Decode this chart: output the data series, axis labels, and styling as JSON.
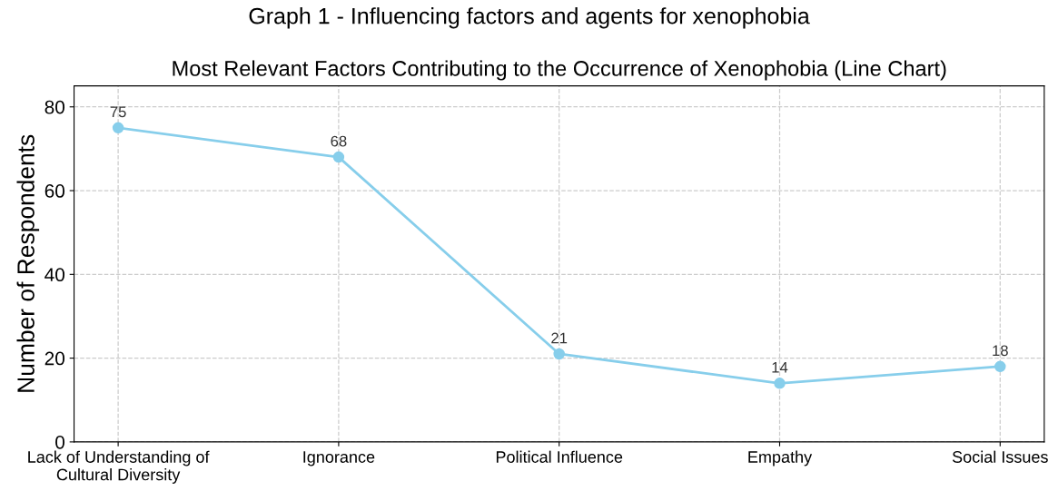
{
  "chart_data": {
    "type": "line",
    "title": "Graph 1 - Influencing factors and agents for xenophobia",
    "subtitle": "Most Relevant Factors Contributing to the Occurrence of Xenophobia (Line Chart)",
    "ylabel": "Number of Respondents",
    "categories": [
      "Lack of Understanding of\nCultural Diversity",
      "Ignorance",
      "Political Influence",
      "Empathy",
      "Social Issues"
    ],
    "series": [
      {
        "color": "#87ceeb",
        "values": [
          75,
          68,
          21,
          14,
          18
        ]
      }
    ],
    "ylim": [
      0,
      85
    ],
    "yticks": [
      0,
      20,
      40,
      60,
      80
    ],
    "grid": true,
    "marker": "circle",
    "line_style": "solid",
    "data_labels": true
  }
}
